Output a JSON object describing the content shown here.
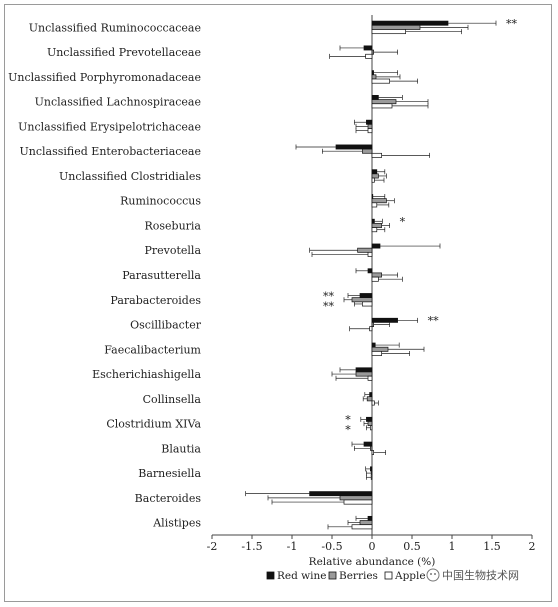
{
  "chart_data": {
    "type": "bar",
    "orientation": "horizontal",
    "xlabel": "Relative abundance (%)",
    "xlim": [
      -2,
      2
    ],
    "xticks": [
      "-2",
      "-1.5",
      "-1",
      "-0.5",
      "0",
      "0.5",
      "1",
      "1.5",
      "2"
    ],
    "legend_position": "bottom",
    "categories": [
      "Unclassified Ruminococcaceae",
      "Unclassified Prevotellaceae",
      "Unclassified Porphyromonadaceae",
      "Unclassified Lachnospiraceae",
      "Unclassified Erysipelotrichaceae",
      "Unclassified Enterobacteriaceae",
      "Unclassified Clostridiales",
      "Ruminococcus",
      "Roseburia",
      "Prevotella",
      "Parasutterella",
      "Parabacteroides",
      "Oscillibacter",
      "Faecalibacterium",
      "Escherichiashigella",
      "Collinsella",
      "Clostridium XIVa",
      "Blautia",
      "Barnesiella",
      "Bacteroides",
      "Alistipes"
    ],
    "series": [
      {
        "name": "Red wine",
        "color": "#111111",
        "values": [
          0.95,
          -0.1,
          0.02,
          0.08,
          -0.07,
          -0.45,
          0.06,
          0.01,
          0.03,
          0.1,
          -0.05,
          -0.15,
          0.32,
          0.04,
          -0.2,
          -0.03,
          -0.07,
          -0.1,
          -0.02,
          -0.78,
          -0.05
        ],
        "errors": [
          0.6,
          0.3,
          0.3,
          0.3,
          0.15,
          0.5,
          0.1,
          0.15,
          0.1,
          0.75,
          0.15,
          0.15,
          0.25,
          0.3,
          0.2,
          0.06,
          0.07,
          0.15,
          0.06,
          0.8,
          0.15
        ]
      },
      {
        "name": "Berries",
        "color": "#9a9a9a",
        "values": [
          0.6,
          0.02,
          0.05,
          0.3,
          -0.05,
          -0.12,
          0.08,
          0.18,
          0.12,
          -0.18,
          0.12,
          -0.25,
          0.02,
          0.2,
          -0.2,
          -0.06,
          -0.05,
          -0.02,
          -0.01,
          -0.4,
          -0.15
        ],
        "errors": [
          0.6,
          0.3,
          0.3,
          0.4,
          0.15,
          0.5,
          0.1,
          0.1,
          0.1,
          0.6,
          0.2,
          0.1,
          0.2,
          0.45,
          0.3,
          0.05,
          0.05,
          0.2,
          0.06,
          0.9,
          0.15
        ]
      },
      {
        "name": "Apple",
        "color": "#ffffff",
        "values": [
          0.42,
          -0.08,
          0.22,
          0.25,
          -0.05,
          0.12,
          0.03,
          0.06,
          0.06,
          -0.05,
          0.08,
          -0.12,
          -0.03,
          0.12,
          -0.05,
          0.03,
          -0.02,
          0.02,
          -0.01,
          -0.35,
          -0.25
        ],
        "errors": [
          0.7,
          0.45,
          0.35,
          0.45,
          0.15,
          0.6,
          0.12,
          0.15,
          0.1,
          0.7,
          0.3,
          0.1,
          0.25,
          0.35,
          0.4,
          0.05,
          0.05,
          0.15,
          0.06,
          0.9,
          0.3
        ]
      }
    ],
    "significance": [
      {
        "category": "Unclassified Ruminococcaceae",
        "text": "**",
        "side": "right"
      },
      {
        "category": "Roseburia",
        "text": "*",
        "side": "right"
      },
      {
        "category": "Parabacteroides",
        "text": "**",
        "side": "left"
      },
      {
        "category": "Parabacteroides",
        "text": "**",
        "side": "left"
      },
      {
        "category": "Oscillibacter",
        "text": "**",
        "side": "right"
      },
      {
        "category": "Clostridium XIVa",
        "text": "*",
        "side": "left"
      },
      {
        "category": "Clostridium XIVa",
        "text": "*",
        "side": "left"
      }
    ]
  },
  "legend": {
    "items": [
      "Red wine",
      "Berries",
      "Apple"
    ]
  },
  "watermark": {
    "text": "中国生物技术网"
  }
}
